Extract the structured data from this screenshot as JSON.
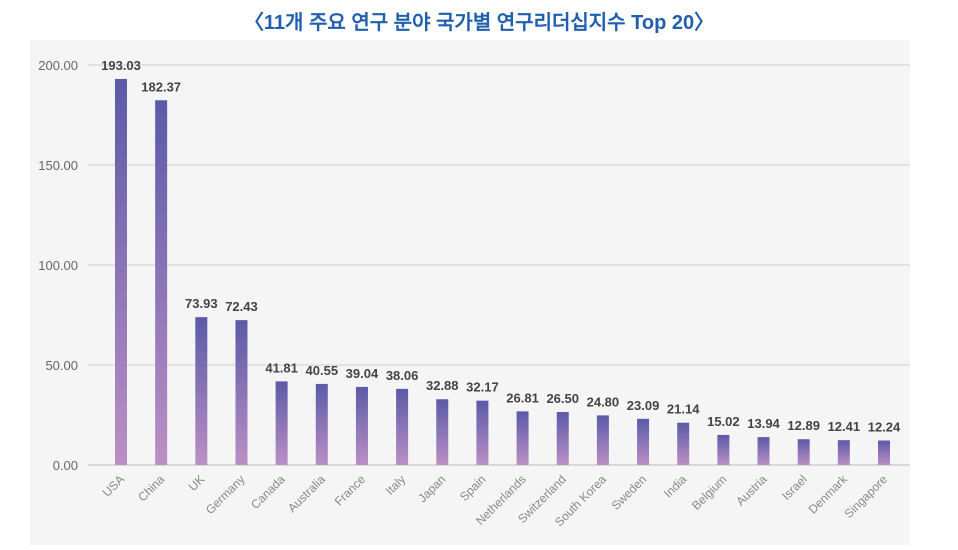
{
  "chart_data": {
    "type": "bar",
    "title": "〈11개 주요 연구 분야 국가별 연구리더십지수 Top 20〉",
    "xlabel": "",
    "ylabel": "",
    "ylim": [
      0,
      200
    ],
    "yticks": [
      "0.00",
      "50.00",
      "100.00",
      "150.00",
      "200.00"
    ],
    "grid": true,
    "categories": [
      "USA",
      "China",
      "UK",
      "Germany",
      "Canada",
      "Australia",
      "France",
      "Italy",
      "Japan",
      "Spain",
      "Netherlands",
      "Switzerland",
      "South Korea",
      "Sweden",
      "India",
      "Belgium",
      "Austria",
      "Israel",
      "Denmark",
      "Singapore"
    ],
    "values": [
      193.03,
      182.37,
      73.93,
      72.43,
      41.81,
      40.55,
      39.04,
      38.06,
      32.88,
      32.17,
      26.81,
      26.5,
      24.8,
      23.09,
      21.14,
      15.02,
      13.94,
      12.89,
      12.41,
      12.24
    ],
    "labels": [
      "193.03",
      "182.37",
      "73.93",
      "72.43",
      "41.81",
      "40.55",
      "39.04",
      "38.06",
      "32.88",
      "32.17",
      "26.81",
      "26.50",
      "24.80",
      "23.09",
      "21.14",
      "15.02",
      "13.94",
      "12.89",
      "12.41",
      "12.24"
    ],
    "colors": {
      "bar_top": "#5b5aa8",
      "bar_bottom": "#bb8fc4",
      "title": "#1f5fae"
    }
  }
}
